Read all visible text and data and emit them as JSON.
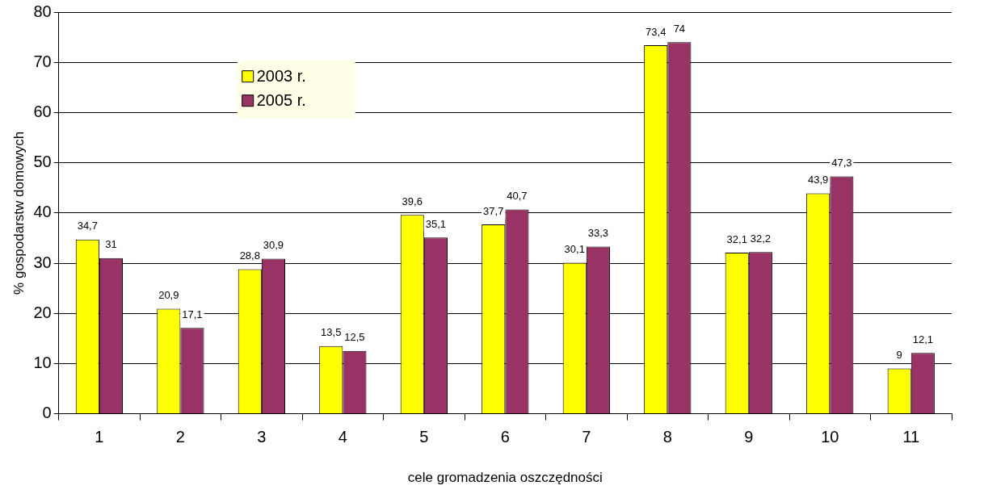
{
  "chart_data": {
    "type": "bar",
    "xlabel": "cele gromadzenia oszczędności",
    "ylabel": "% gospodarstw domowych",
    "categories": [
      "1",
      "2",
      "3",
      "4",
      "5",
      "6",
      "7",
      "8",
      "9",
      "10",
      "11"
    ],
    "series": [
      {
        "name": "2003 r.",
        "color": "#ffff00",
        "values": [
          34.7,
          20.9,
          28.8,
          13.5,
          39.6,
          37.7,
          30.1,
          73.4,
          32.1,
          43.9,
          9
        ],
        "value_labels": [
          "34,7",
          "20,9",
          "28,8",
          "13,5",
          "39,6",
          "37,7",
          "30,1",
          "73,4",
          "32,1",
          "43,9",
          "9"
        ]
      },
      {
        "name": "2005 r.",
        "color": "#993366",
        "values": [
          31,
          17.1,
          30.9,
          12.5,
          35.1,
          40.7,
          33.3,
          74,
          32.2,
          47.3,
          12.1
        ],
        "value_labels": [
          "31",
          "17,1",
          "30,9",
          "12,5",
          "35,1",
          "40,7",
          "33,3",
          "74",
          "32,2",
          "47,3",
          "12,1"
        ]
      }
    ],
    "ylim": [
      0,
      80
    ],
    "yticks": [
      0,
      10,
      20,
      30,
      40,
      50,
      60,
      70,
      80
    ],
    "grid": "y",
    "legend": "top left"
  }
}
